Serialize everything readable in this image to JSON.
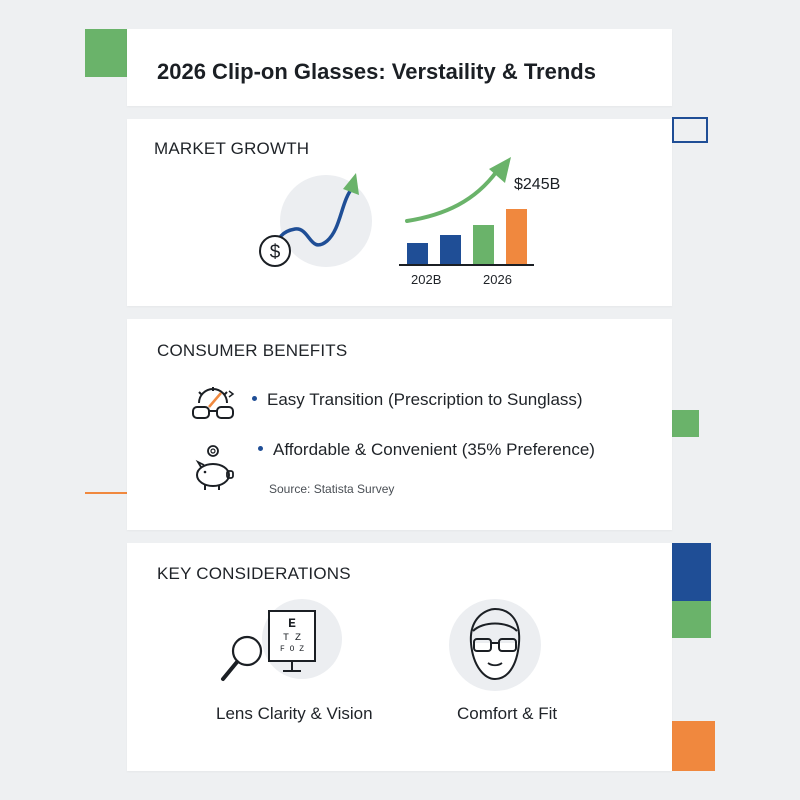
{
  "header": {
    "title": "2026 Clip-on Glasses: Verstaility & Trends"
  },
  "market_growth": {
    "heading": "MARKET GROWTH",
    "chart": {
      "value_label": "$245B",
      "start_label": "202B",
      "end_label": "2026",
      "bar_values": [
        1.0,
        1.35,
        1.8,
        2.55
      ],
      "bar_colors": [
        "#1f4e96",
        "#1f4e96",
        "#6ab36a",
        "#f0883e"
      ]
    }
  },
  "consumer_benefits": {
    "heading": "CONSUMER BENEFITS",
    "items": [
      {
        "label": "Easy Transition (Prescription to Sunglass)",
        "icon": "glasses-sun-icon"
      },
      {
        "label": "Affordable & Convenient (35% Preference)",
        "icon": "piggy-bank-icon"
      }
    ],
    "source": "Source: Statista Survey"
  },
  "key_considerations": {
    "heading": "KEY CONSIDERATIONS",
    "items": [
      {
        "label": "Lens Clarity & Vision",
        "icon": "eye-chart-magnifier-icon"
      },
      {
        "label": "Comfort & Fit",
        "icon": "face-glasses-icon"
      }
    ]
  },
  "colors": {
    "green": "#6ab36a",
    "blue": "#1f4e96",
    "orange": "#f0883e"
  }
}
